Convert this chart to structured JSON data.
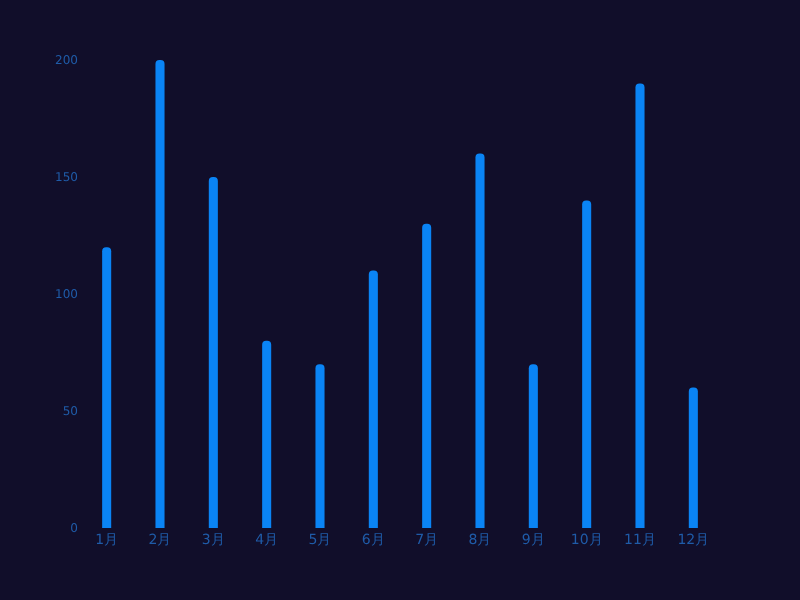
{
  "chart_data": {
    "type": "bar",
    "categories": [
      "1月",
      "2月",
      "3月",
      "4月",
      "5月",
      "6月",
      "7月",
      "8月",
      "9月",
      "10月",
      "11月",
      "12月"
    ],
    "values": [
      120,
      200,
      150,
      80,
      70,
      110,
      130,
      160,
      70,
      140,
      190,
      60
    ],
    "color": "#0a84f5",
    "ylim": [
      0,
      200
    ],
    "yticks": [
      0,
      50,
      100,
      150,
      200
    ],
    "grid": false,
    "legend": false
  }
}
